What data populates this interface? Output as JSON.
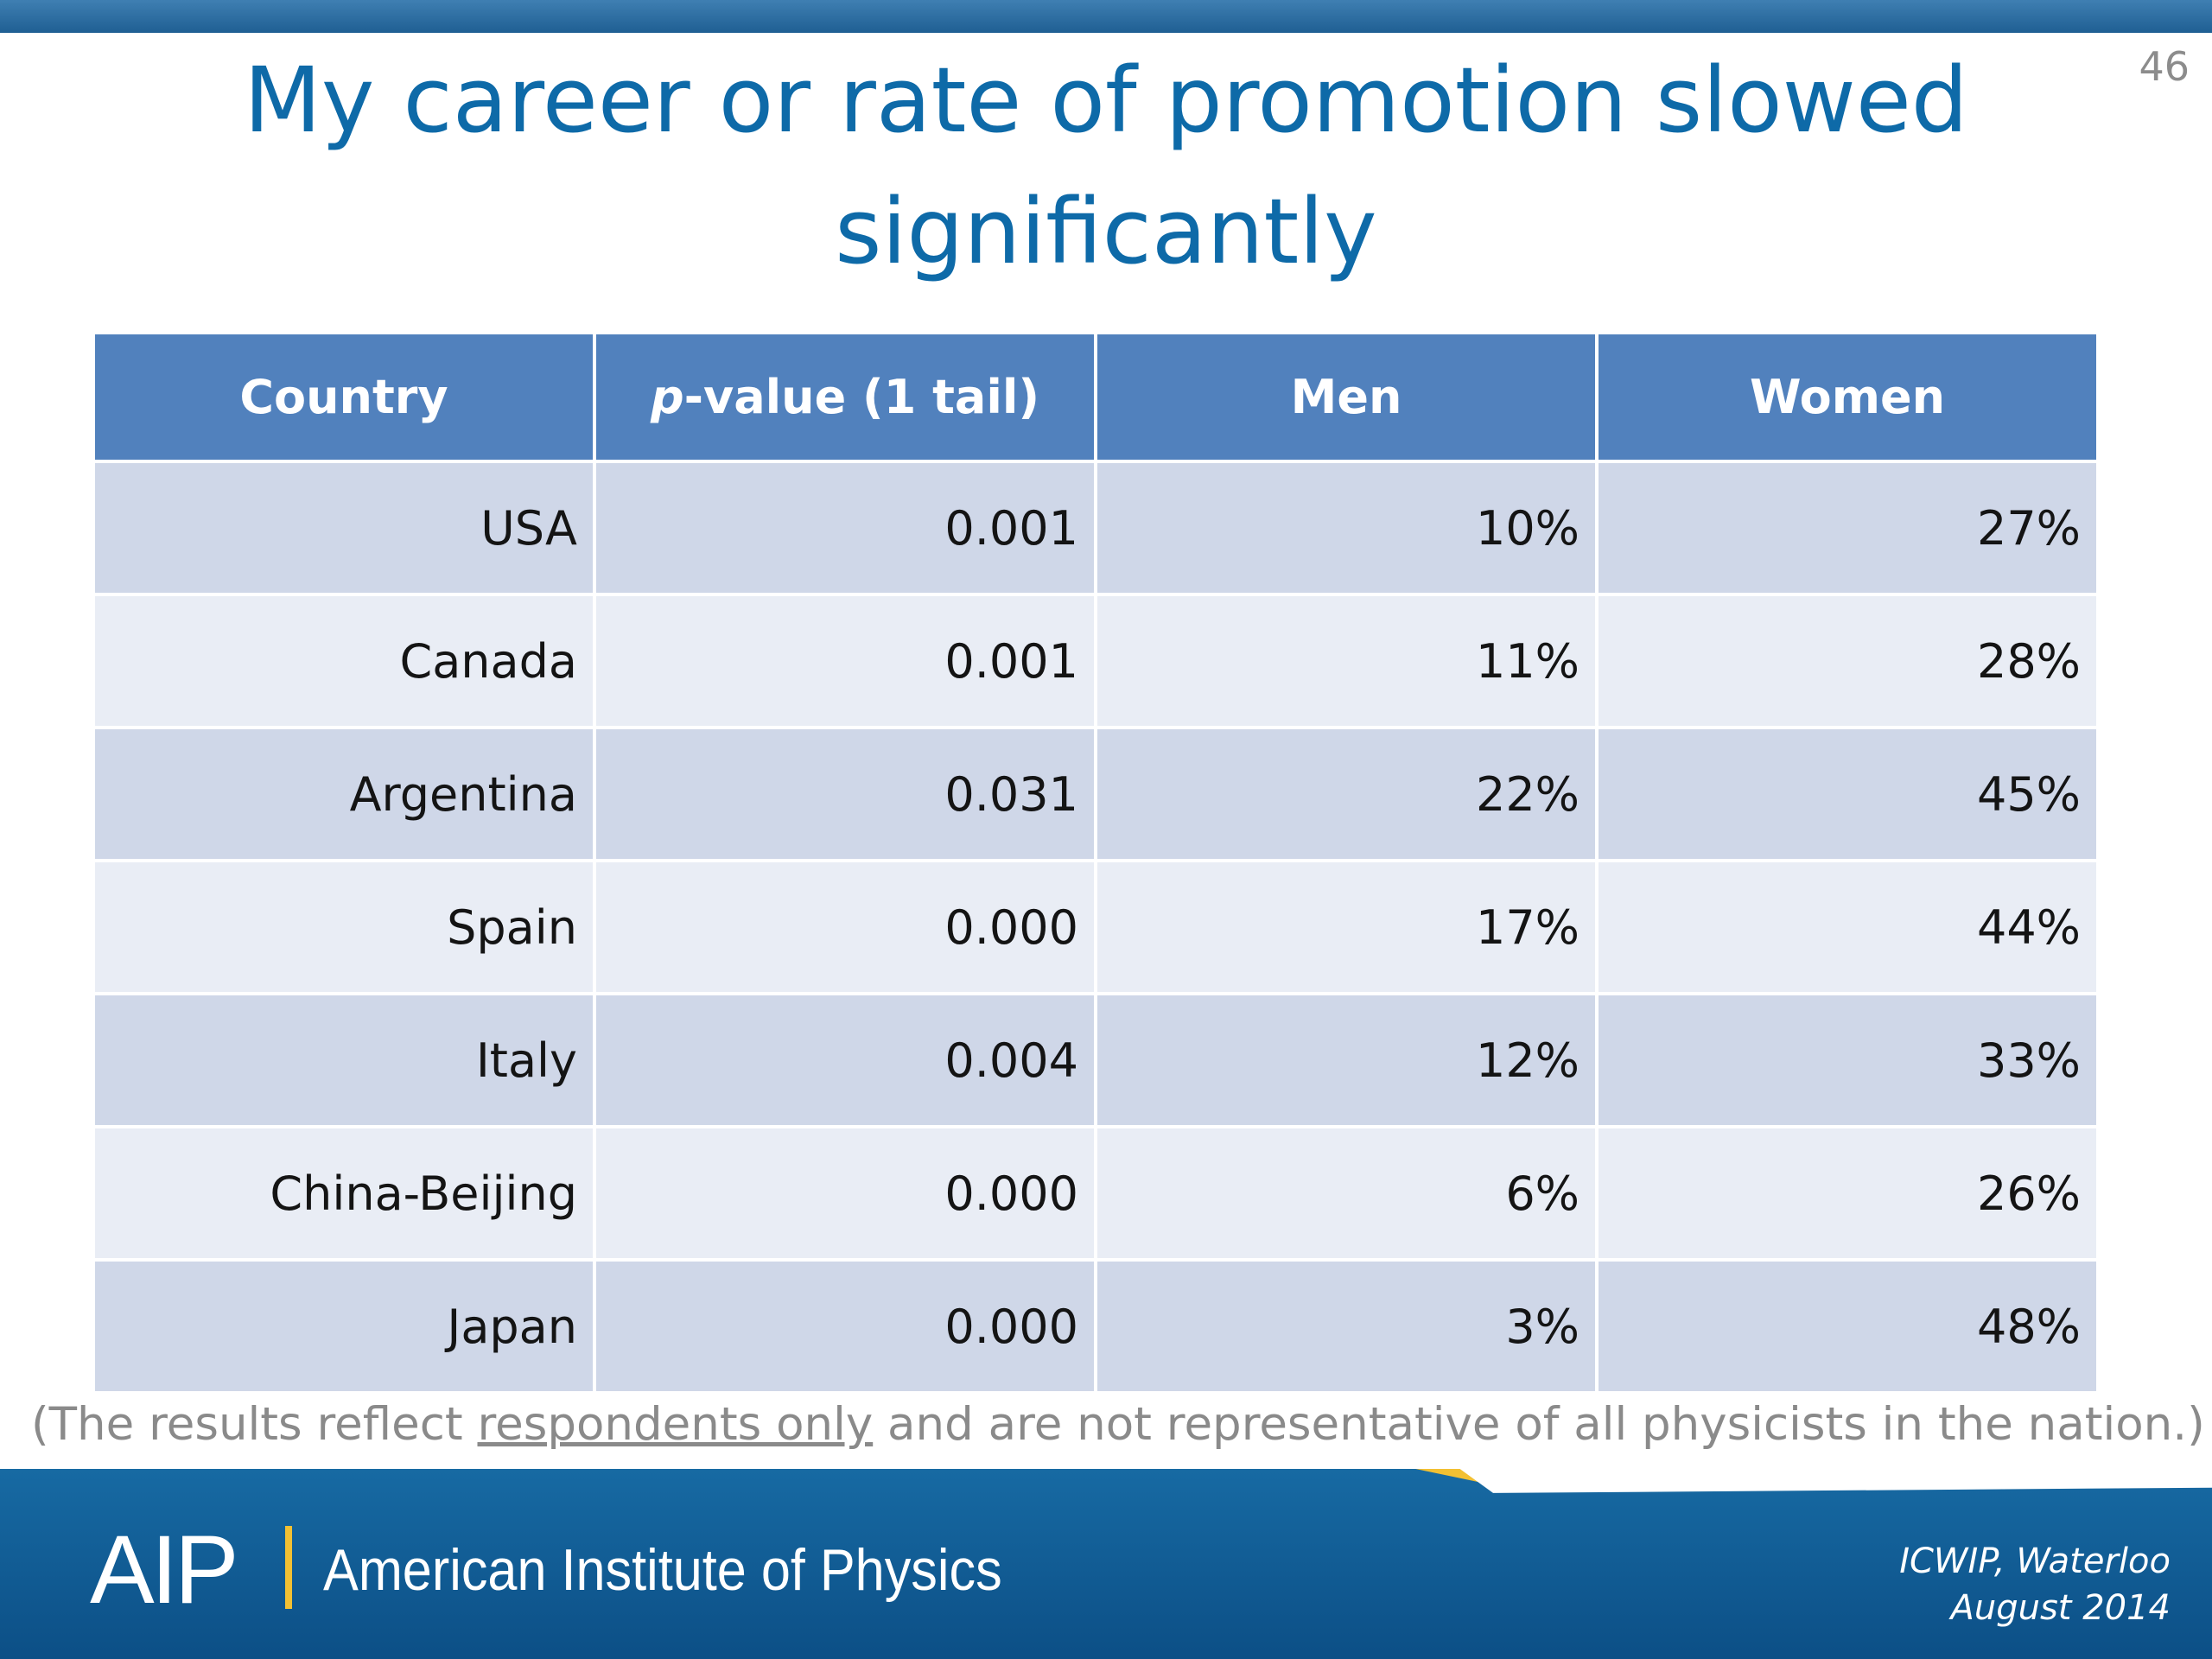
{
  "slide_number": "46",
  "title": "My career or rate of promotion slowed significantly",
  "table": {
    "headers": {
      "country": "Country",
      "pvalue_italic": "p",
      "pvalue_rest": "-value (1 tail)",
      "men": "Men",
      "women": "Women"
    },
    "rows": [
      {
        "country": "USA",
        "pvalue": "0.001",
        "men": "10%",
        "women": "27%"
      },
      {
        "country": "Canada",
        "pvalue": "0.001",
        "men": "11%",
        "women": "28%"
      },
      {
        "country": "Argentina",
        "pvalue": "0.031",
        "men": "22%",
        "women": "45%"
      },
      {
        "country": "Spain",
        "pvalue": "0.000",
        "men": "17%",
        "women": "44%"
      },
      {
        "country": "Italy",
        "pvalue": "0.004",
        "men": "12%",
        "women": "33%"
      },
      {
        "country": "China-Beijing",
        "pvalue": "0.000",
        "men": "6%",
        "women": "26%"
      },
      {
        "country": "Japan",
        "pvalue": "0.000",
        "men": "3%",
        "women": "48%"
      }
    ]
  },
  "note": {
    "before": "(The results reflect ",
    "underlined": "respondents only",
    "after": " and are not representative of all physicists in the nation.)"
  },
  "footer": {
    "logo_text": "AIP",
    "org_name": "American Institute of Physics",
    "event_line1": "ICWIP, Waterloo",
    "event_line2": "August 2014"
  },
  "colors": {
    "title": "#0e6aa8",
    "header_bg": "#5181bd",
    "row_odd": "#cfd7e8",
    "row_even": "#e9edf5",
    "footer_bg": "#0c4f86",
    "accent": "#f2c033"
  }
}
